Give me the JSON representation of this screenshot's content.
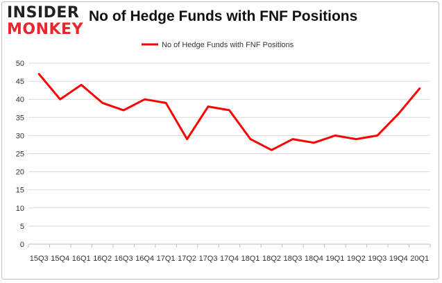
{
  "logo": {
    "line1": "INSIDER",
    "line2": "MONKEY"
  },
  "chart_data": {
    "type": "line",
    "title": "No of Hedge Funds with FNF Positions",
    "xlabel": "",
    "ylabel": "",
    "categories": [
      "15Q3",
      "15Q4",
      "16Q1",
      "16Q2",
      "16Q3",
      "16Q4",
      "17Q1",
      "17Q2",
      "17Q3",
      "17Q4",
      "18Q1",
      "18Q2",
      "18Q3",
      "18Q4",
      "19Q1",
      "19Q2",
      "19Q3",
      "19Q4",
      "20Q1"
    ],
    "series": [
      {
        "name": "No of Hedge Funds with FNF Positions",
        "color": "#ff0000",
        "values": [
          47,
          40,
          44,
          39,
          37,
          40,
          39,
          29,
          38,
          37,
          29,
          26,
          29,
          28,
          30,
          29,
          30,
          36,
          43
        ]
      }
    ],
    "yticks": [
      0,
      5,
      10,
      15,
      20,
      25,
      30,
      35,
      40,
      45,
      50
    ],
    "ylim": [
      0,
      50
    ],
    "grid": true,
    "legend": "top-center"
  }
}
